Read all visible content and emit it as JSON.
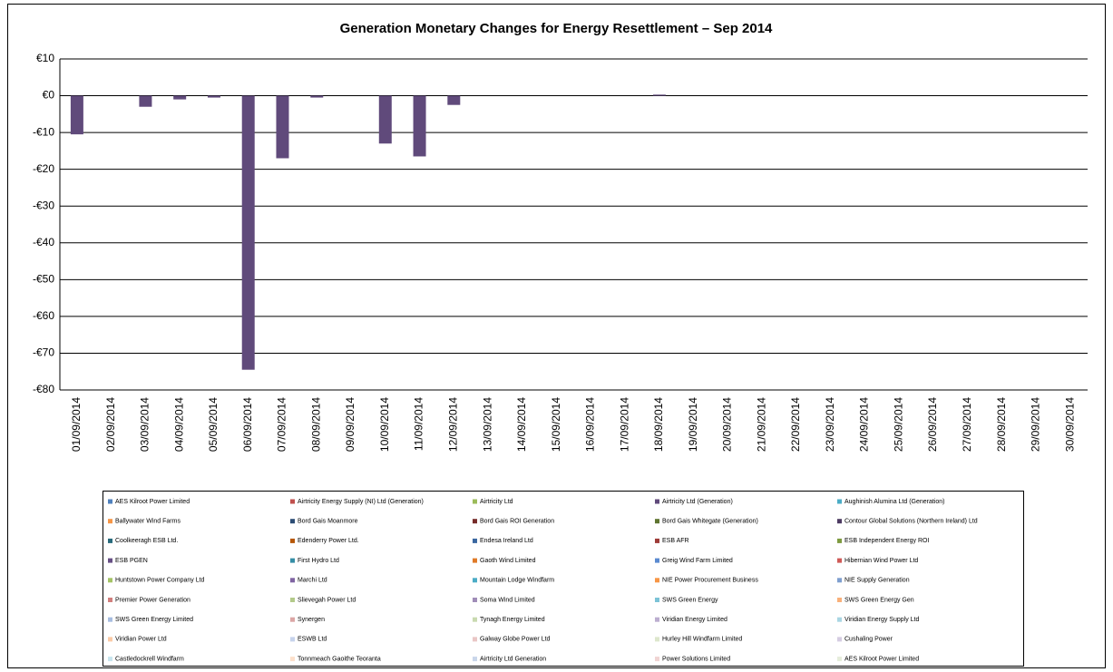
{
  "chart_data": {
    "type": "bar",
    "title": "Generation Monetary Changes for Energy Resettlement – Sep 2014",
    "categories": [
      "01/09/2014",
      "02/09/2014",
      "03/09/2014",
      "04/09/2014",
      "05/09/2014",
      "06/09/2014",
      "07/09/2014",
      "08/09/2014",
      "09/09/2014",
      "10/09/2014",
      "11/09/2014",
      "12/09/2014",
      "13/09/2014",
      "14/09/2014",
      "15/09/2014",
      "16/09/2014",
      "17/09/2014",
      "18/09/2014",
      "19/09/2014",
      "20/09/2014",
      "21/09/2014",
      "22/09/2014",
      "23/09/2014",
      "24/09/2014",
      "25/09/2014",
      "26/09/2014",
      "27/09/2014",
      "28/09/2014",
      "29/09/2014",
      "30/09/2014"
    ],
    "ylim": [
      -80,
      10
    ],
    "yticks": [
      {
        "value": 10,
        "label": "€10"
      },
      {
        "value": 0,
        "label": "€0"
      },
      {
        "value": -10,
        "label": "-€10"
      },
      {
        "value": -20,
        "label": "-€20"
      },
      {
        "value": -30,
        "label": "-€30"
      },
      {
        "value": -40,
        "label": "-€40"
      },
      {
        "value": -50,
        "label": "-€50"
      },
      {
        "value": -60,
        "label": "-€60"
      },
      {
        "value": -70,
        "label": "-€70"
      },
      {
        "value": -80,
        "label": "-€80"
      }
    ],
    "grid": true,
    "series": [
      {
        "name": "AES Kilroot Power Limited",
        "color": "#4f81bd"
      },
      {
        "name": "Airtricity Energy Supply (NI) Ltd (Generation)",
        "color": "#c0504d"
      },
      {
        "name": "Airtricity Ltd",
        "color": "#9bbb59"
      },
      {
        "name": "Airtricity Ltd (Generation)",
        "color": "#604a7b",
        "values": [
          -10.5,
          0,
          -3,
          -1,
          -0.5,
          -74.5,
          -17,
          -0.5,
          0,
          -13,
          -16.5,
          -2.5,
          0,
          0,
          0,
          0,
          0,
          0.3,
          0,
          0,
          0,
          0,
          0,
          0,
          0,
          0,
          0,
          0,
          0,
          0
        ]
      },
      {
        "name": "Aughinish Alumina Ltd (Generation)",
        "color": "#4bacc6"
      },
      {
        "name": "Ballywater Wind Farms",
        "color": "#f79646"
      },
      {
        "name": "Bord Gais Moanmore",
        "color": "#2c4d75"
      },
      {
        "name": "Bord Gais ROI Generation",
        "color": "#772c2a"
      },
      {
        "name": "Bord Gais Whitegate (Generation)",
        "color": "#5f7530"
      },
      {
        "name": "Contour Global Solutions (Northern Ireland) Ltd",
        "color": "#4d3b62"
      },
      {
        "name": "Coolkeeragh ESB Ltd.",
        "color": "#276a7c"
      },
      {
        "name": "Edenderry Power Ltd.",
        "color": "#b65708"
      },
      {
        "name": "Endesa Ireland Ltd",
        "color": "#3a67a0"
      },
      {
        "name": "ESB AFR",
        "color": "#9e3b38"
      },
      {
        "name": "ESB Independent Energy ROI",
        "color": "#7e9b40"
      },
      {
        "name": "ESB PGEN",
        "color": "#664e84"
      },
      {
        "name": "First Hydro Ltd",
        "color": "#358ea6"
      },
      {
        "name": "Gaoth Wind Limited",
        "color": "#e07a28"
      },
      {
        "name": "Greig Wind Farm Limited",
        "color": "#5b8ad0"
      },
      {
        "name": "Hibernian Wind Power Ltd",
        "color": "#cf5a57"
      },
      {
        "name": "Huntstown Power Company Ltd",
        "color": "#a4c365"
      },
      {
        "name": "Marchi Ltd",
        "color": "#8064a2"
      },
      {
        "name": "Mountain Lodge Windfarm",
        "color": "#4bacc6"
      },
      {
        "name": "NIE Power Procurement Business",
        "color": "#f79646"
      },
      {
        "name": "NIE Supply Generation",
        "color": "#7f9fcf"
      },
      {
        "name": "Premier Power Generation",
        "color": "#d17f7d"
      },
      {
        "name": "Slievegah Power Ltd",
        "color": "#b3ca8a"
      },
      {
        "name": "Soma Wind Limited",
        "color": "#a08db8"
      },
      {
        "name": "SWS Green Energy",
        "color": "#7cc3d7"
      },
      {
        "name": "SWS Green Energy Gen",
        "color": "#f9b07a"
      },
      {
        "name": "SWS Green Energy Limited",
        "color": "#a7bde0"
      },
      {
        "name": "Synergen",
        "color": "#dca6a5"
      },
      {
        "name": "Tynagh Energy Limited",
        "color": "#c9dab0"
      },
      {
        "name": "Viridian Energy Limited",
        "color": "#bcaed0"
      },
      {
        "name": "Viridian Energy Supply Ltd",
        "color": "#a9d6e3"
      },
      {
        "name": "Viridian Power Ltd",
        "color": "#fbcaa6"
      },
      {
        "name": "ESWB Ltd",
        "color": "#c6d3ec"
      },
      {
        "name": "Galway Globe Power Ltd",
        "color": "#eac6c5"
      },
      {
        "name": "Hurley Hill Windfarm Limited",
        "color": "#dde7cc"
      },
      {
        "name": "Cushaling Power",
        "color": "#d5cce2"
      },
      {
        "name": "Castledockrell Windfarm",
        "color": "#c8e5ee"
      },
      {
        "name": "Tonnmeach Gaoithe Teoranta",
        "color": "#fde0cb"
      },
      {
        "name": "Airtricity Ltd Generation",
        "color": "#c9d6ea"
      },
      {
        "name": "Power Solutions Limited",
        "color": "#f0d4d3"
      },
      {
        "name": "AES Kilroot Power Limited",
        "color": "#e6eddb"
      }
    ]
  }
}
